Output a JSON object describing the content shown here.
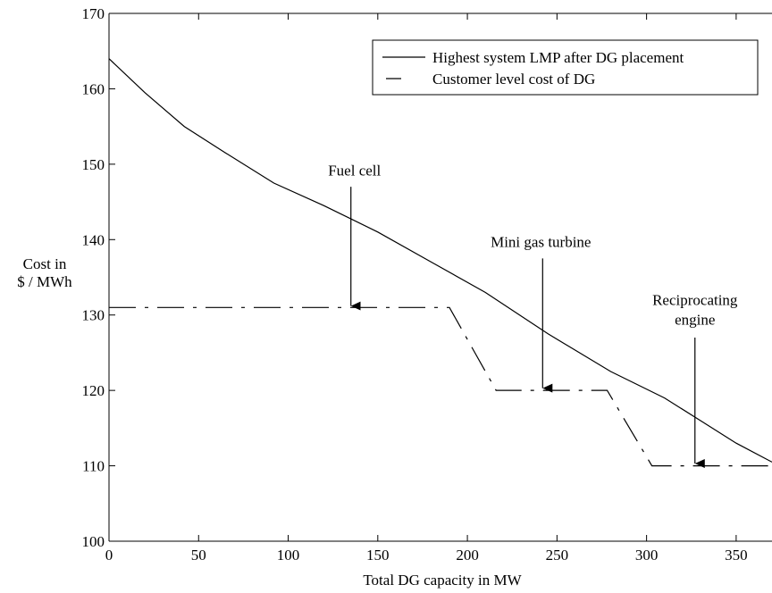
{
  "chart_data": {
    "type": "line",
    "title": "",
    "xlabel": "Total DG capacity in  MW",
    "ylabel_lines": [
      "Cost  in",
      "$ / MWh"
    ],
    "xlim": [
      0,
      370
    ],
    "ylim": [
      100,
      170
    ],
    "x_ticks": [
      0,
      50,
      100,
      150,
      200,
      250,
      300,
      350
    ],
    "y_ticks": [
      100,
      110,
      120,
      130,
      140,
      150,
      160,
      170
    ],
    "grid": false,
    "legend_position": "top-right",
    "series": [
      {
        "name": "Highest system LMP after DG placement",
        "style": "solid",
        "color": "#000000",
        "points": [
          [
            0,
            164
          ],
          [
            20,
            159.5
          ],
          [
            42,
            155
          ],
          [
            65,
            151.5
          ],
          [
            92,
            147.5
          ],
          [
            120,
            144.5
          ],
          [
            150,
            141
          ],
          [
            180,
            137
          ],
          [
            210,
            133
          ],
          [
            245,
            127.5
          ],
          [
            280,
            122.5
          ],
          [
            310,
            119
          ],
          [
            330,
            116
          ],
          [
            350,
            113
          ],
          [
            370,
            110.5
          ]
        ]
      },
      {
        "name": "Customer level cost of DG",
        "style": "dashdot",
        "color": "#000000",
        "points": [
          [
            0,
            131
          ],
          [
            190,
            131
          ],
          [
            216,
            120
          ],
          [
            278,
            120
          ],
          [
            303,
            110
          ],
          [
            370,
            110
          ]
        ]
      }
    ],
    "annotations": [
      {
        "label_lines": [
          "Fuel cell"
        ],
        "label_x": 137,
        "label_y": 148.5,
        "arrow_x": 135,
        "arrow_from": 147,
        "arrow_to": 131.2
      },
      {
        "label_lines": [
          "Mini gas turbine"
        ],
        "label_x": 241,
        "label_y": 139,
        "arrow_x": 242,
        "arrow_from": 137.5,
        "arrow_to": 120.3
      },
      {
        "label_lines": [
          "Reciprocating",
          "engine"
        ],
        "label_x": 327,
        "label_y": 131.3,
        "arrow_x": 327,
        "arrow_from": 127,
        "arrow_to": 110.3
      }
    ]
  }
}
